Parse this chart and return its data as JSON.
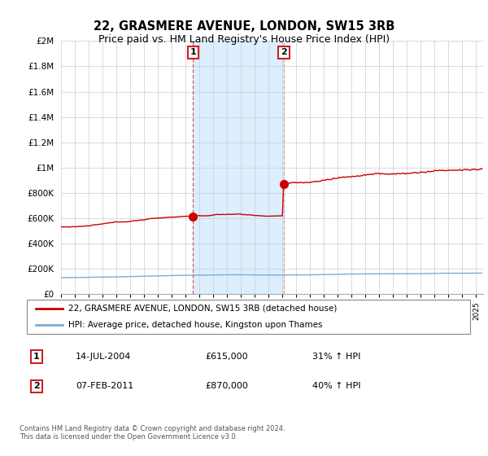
{
  "title": "22, GRASMERE AVENUE, LONDON, SW15 3RB",
  "subtitle": "Price paid vs. HM Land Registry's House Price Index (HPI)",
  "ylabel_ticks": [
    "£0",
    "£200K",
    "£400K",
    "£600K",
    "£800K",
    "£1M",
    "£1.2M",
    "£1.4M",
    "£1.6M",
    "£1.8M",
    "£2M"
  ],
  "ytick_vals": [
    0,
    200000,
    400000,
    600000,
    800000,
    1000000,
    1200000,
    1400000,
    1600000,
    1800000,
    2000000
  ],
  "ylim": [
    0,
    2000000
  ],
  "xlim_start": 1995.0,
  "xlim_end": 2025.5,
  "sale1_x": 2004.54,
  "sale1_y": 615000,
  "sale1_label": "1",
  "sale1_date": "14-JUL-2004",
  "sale1_price": "£615,000",
  "sale1_hpi": "31% ↑ HPI",
  "sale2_x": 2011.1,
  "sale2_y": 870000,
  "sale2_label": "2",
  "sale2_date": "07-FEB-2011",
  "sale2_price": "£870,000",
  "sale2_hpi": "40% ↑ HPI",
  "line1_color": "#cc0000",
  "line2_color": "#7aadd4",
  "shade_color": "#ddeeff",
  "legend1": "22, GRASMERE AVENUE, LONDON, SW15 3RB (detached house)",
  "legend2": "HPI: Average price, detached house, Kingston upon Thames",
  "footer": "Contains HM Land Registry data © Crown copyright and database right 2024.\nThis data is licensed under the Open Government Licence v3.0.",
  "background_color": "#ffffff",
  "grid_color": "#cccccc",
  "title_fontsize": 10.5,
  "subtitle_fontsize": 9
}
